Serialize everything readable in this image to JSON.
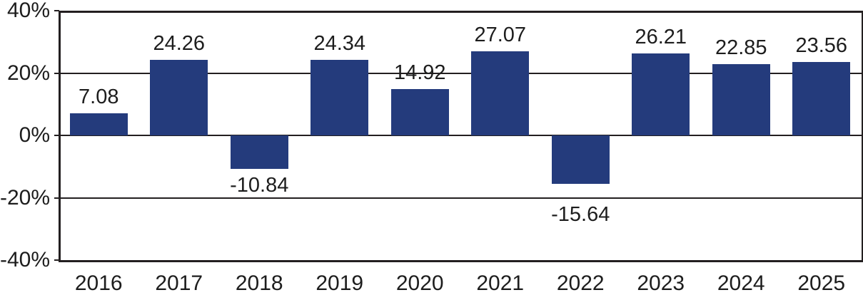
{
  "chart_data": {
    "type": "bar",
    "title": "",
    "xlabel": "",
    "ylabel": "",
    "categories": [
      "2016",
      "2017",
      "2018",
      "2019",
      "2020",
      "2021",
      "2022",
      "2023",
      "2024",
      "2025"
    ],
    "values": [
      7.08,
      24.26,
      -10.84,
      24.34,
      14.92,
      27.07,
      -15.64,
      26.21,
      22.85,
      23.56
    ],
    "value_labels": [
      "7.08",
      "24.26",
      "-10.84",
      "24.34",
      "14.92",
      "27.07",
      "-15.64",
      "26.21",
      "22.85",
      "23.56"
    ],
    "ylim": [
      -40,
      40
    ],
    "yticks": [
      40,
      20,
      0,
      -20,
      -40
    ],
    "ytick_labels": [
      "40%",
      "20%",
      "0%",
      "-20%",
      "-40%"
    ],
    "gridline_values": [
      20,
      0,
      -20
    ],
    "grid": true,
    "legend": "none",
    "bar_color": "#243B7C",
    "axis_color": "#231F20",
    "text_color": "#1D1D1D",
    "background_color": "#FFFFFF"
  }
}
